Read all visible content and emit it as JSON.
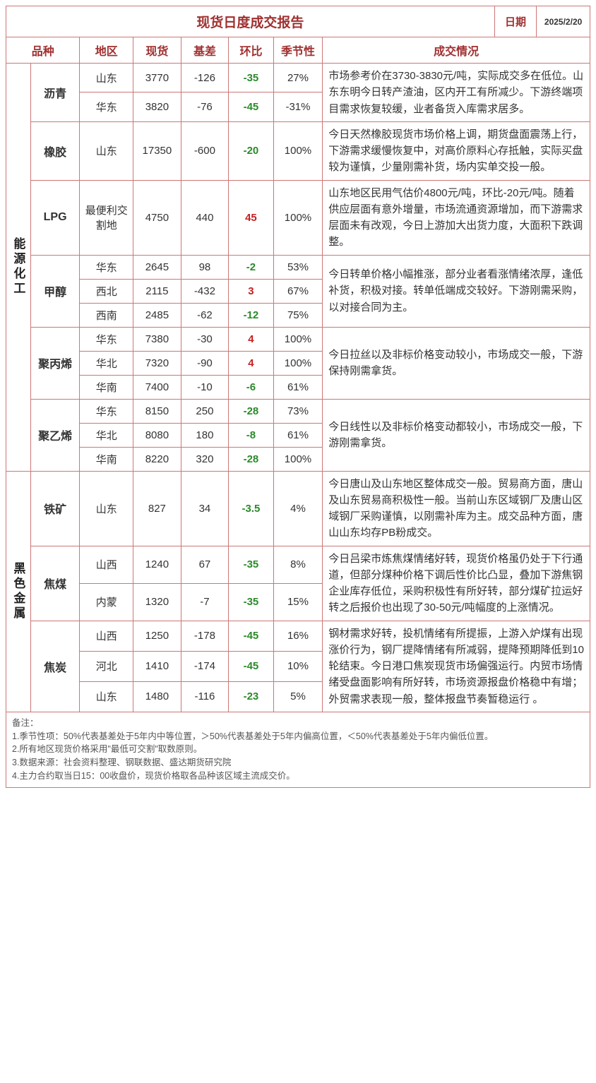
{
  "header": {
    "title": "现货日度成交报告",
    "date_label": "日期",
    "date_value": "2025/2/20"
  },
  "columns": {
    "category": "品种",
    "region": "地区",
    "spot": "现货",
    "basis": "基差",
    "ratio": "环比",
    "seasonal": "季节性",
    "desc": "成交情况"
  },
  "widths": {
    "cat": 34,
    "prodname": 68,
    "region": 74,
    "spot": 66,
    "basis": 66,
    "ratio": 62,
    "seasonal": 68,
    "desc": 370,
    "date_label": 58,
    "date_val": 74
  },
  "colors": {
    "border": "#cc7777",
    "header_text": "#a03030",
    "neg": "#2a8a2a",
    "pos": "#c62020"
  },
  "categories": [
    {
      "name": "能源化工",
      "products": [
        {
          "name": "沥青",
          "desc": "市场参考价在3730-3830元/吨，实际成交多在低位。山东东明今日转产渣油，区内开工有所减少。下游终端项目需求恢复较缓，业者备货入库需求居多。",
          "rows": [
            {
              "region": "山东",
              "spot": "3770",
              "basis": "-126",
              "ratio": "-35",
              "ratio_sign": "neg",
              "seasonal": "27%"
            },
            {
              "region": "华东",
              "spot": "3820",
              "basis": "-76",
              "ratio": "-45",
              "ratio_sign": "neg",
              "seasonal": "-31%"
            }
          ]
        },
        {
          "name": "橡胶",
          "desc": "今日天然橡胶现货市场价格上调，期货盘面震荡上行，下游需求缓慢恢复中，对高价原料心存抵触，实际买盘较为谨慎，少量刚需补货，场内实单交投一般。",
          "rows": [
            {
              "region": "山东",
              "spot": "17350",
              "basis": "-600",
              "ratio": "-20",
              "ratio_sign": "neg",
              "seasonal": "100%"
            }
          ]
        },
        {
          "name": "LPG",
          "desc": "山东地区民用气估价4800元/吨，环比-20元/吨。随着供应层面有意外增量，市场流通资源增加，而下游需求层面未有改观，今日上游加大出货力度，大面积下跌调整。",
          "rows": [
            {
              "region": "最便利交割地",
              "spot": "4750",
              "basis": "440",
              "ratio": "45",
              "ratio_sign": "pos",
              "seasonal": "100%"
            }
          ]
        },
        {
          "name": "甲醇",
          "desc": "今日转单价格小幅推涨，部分业者看涨情绪浓厚，逢低补货，积极对接。转单低端成交较好。下游刚需采购，以对接合同为主。",
          "rows": [
            {
              "region": "华东",
              "spot": "2645",
              "basis": "98",
              "ratio": "-2",
              "ratio_sign": "neg",
              "seasonal": "53%"
            },
            {
              "region": "西北",
              "spot": "2115",
              "basis": "-432",
              "ratio": "3",
              "ratio_sign": "pos",
              "seasonal": "67%"
            },
            {
              "region": "西南",
              "spot": "2485",
              "basis": "-62",
              "ratio": "-12",
              "ratio_sign": "neg",
              "seasonal": "75%"
            }
          ]
        },
        {
          "name": "聚丙烯",
          "desc": "今日拉丝以及非标价格变动较小，市场成交一般，下游保持刚需拿货。",
          "rows": [
            {
              "region": "华东",
              "spot": "7380",
              "basis": "-30",
              "ratio": "4",
              "ratio_sign": "pos",
              "seasonal": "100%"
            },
            {
              "region": "华北",
              "spot": "7320",
              "basis": "-90",
              "ratio": "4",
              "ratio_sign": "pos",
              "seasonal": "100%"
            },
            {
              "region": "华南",
              "spot": "7400",
              "basis": "-10",
              "ratio": "-6",
              "ratio_sign": "neg",
              "seasonal": "61%"
            }
          ]
        },
        {
          "name": "聚乙烯",
          "desc": "今日线性以及非标价格变动都较小，市场成交一般，下游刚需拿货。",
          "rows": [
            {
              "region": "华东",
              "spot": "8150",
              "basis": "250",
              "ratio": "-28",
              "ratio_sign": "neg",
              "seasonal": "73%"
            },
            {
              "region": "华北",
              "spot": "8080",
              "basis": "180",
              "ratio": "-8",
              "ratio_sign": "neg",
              "seasonal": "61%"
            },
            {
              "region": "华南",
              "spot": "8220",
              "basis": "320",
              "ratio": "-28",
              "ratio_sign": "neg",
              "seasonal": "100%"
            }
          ]
        }
      ]
    },
    {
      "name": "黑色金属",
      "products": [
        {
          "name": "铁矿",
          "desc": "今日唐山及山东地区整体成交一般。贸易商方面，唐山及山东贸易商积极性一般。当前山东区域钢厂及唐山区域钢厂采购谨慎，以刚需补库为主。成交品种方面，唐山山东均存PB粉成交。",
          "rows": [
            {
              "region": "山东",
              "spot": "827",
              "basis": "34",
              "ratio": "-3.5",
              "ratio_sign": "neg",
              "seasonal": "4%"
            }
          ]
        },
        {
          "name": "焦煤",
          "desc": "今日吕梁市炼焦煤情绪好转，现货价格虽仍处于下行通道，但部分煤种价格下调后性价比凸显，叠加下游焦钢企业库存低位，采购积极性有所好转，部分煤矿拉运好转之后报价也出现了30-50元/吨幅度的上涨情况。",
          "rows": [
            {
              "region": "山西",
              "spot": "1240",
              "basis": "67",
              "ratio": "-35",
              "ratio_sign": "neg",
              "seasonal": "8%"
            },
            {
              "region": "内蒙",
              "spot": "1320",
              "basis": "-7",
              "ratio": "-35",
              "ratio_sign": "neg",
              "seasonal": "15%"
            }
          ]
        },
        {
          "name": "焦炭",
          "desc": "钢材需求好转，投机情绪有所提振，上游入炉煤有出现涨价行为，钢厂提降情绪有所减弱，提降预期降低到10轮结束。今日港口焦炭现货市场偏强运行。内贸市场情绪受盘面影响有所好转，市场资源报盘价格稳中有增；外贸需求表现一般，整体报盘节奏暂稳运行 。",
          "rows": [
            {
              "region": "山西",
              "spot": "1250",
              "basis": "-178",
              "ratio": "-45",
              "ratio_sign": "neg",
              "seasonal": "16%"
            },
            {
              "region": "河北",
              "spot": "1410",
              "basis": "-174",
              "ratio": "-45",
              "ratio_sign": "neg",
              "seasonal": "10%"
            },
            {
              "region": "山东",
              "spot": "1480",
              "basis": "-116",
              "ratio": "-23",
              "ratio_sign": "neg",
              "seasonal": "5%"
            }
          ]
        }
      ]
    }
  ],
  "footnotes": {
    "label": "备注：",
    "lines": [
      "1.季节性项：50%代表基差处于5年内中等位置，＞50%代表基差处于5年内偏高位置，＜50%代表基差处于5年内偏低位置。",
      "2.所有地区现货价格采用\"最低可交割\"取数原则。",
      "3.数据来源：社会资料整理、钢联数据、盛达期货研究院",
      "4.主力合约取当日15：00收盘价，现货价格取各品种该区域主流成交价。"
    ]
  }
}
